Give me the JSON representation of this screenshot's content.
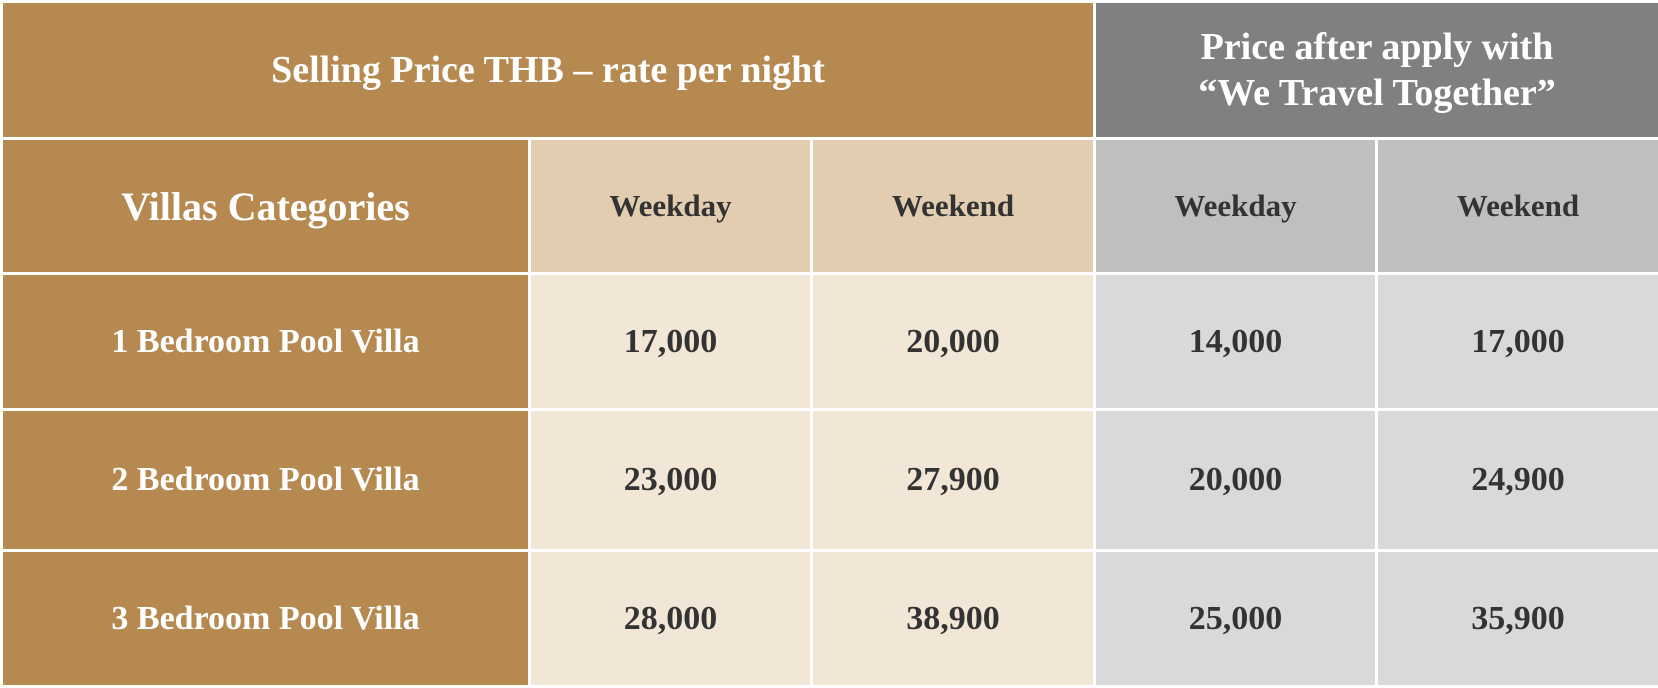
{
  "header": {
    "title": "Selling Price THB – rate per night",
    "subtitle": [
      "Price after apply with",
      "“We Travel Together”"
    ]
  },
  "table": {
    "columns": [
      "Villas Categories",
      "Weekday",
      "Weekend",
      "Weekday",
      "Weekend"
    ],
    "rows": [
      [
        "1 Bedroom Pool Villa",
        "17,000",
        "20,000",
        "14,000",
        "17,000"
      ],
      [
        "2 Bedroom Pool Villa",
        "23,000",
        "27,900",
        "20,000",
        "24,900"
      ],
      [
        "3 Bedroom Pool Villa",
        "28,000",
        "38,900",
        "25,000",
        "35,900"
      ]
    ]
  }
}
